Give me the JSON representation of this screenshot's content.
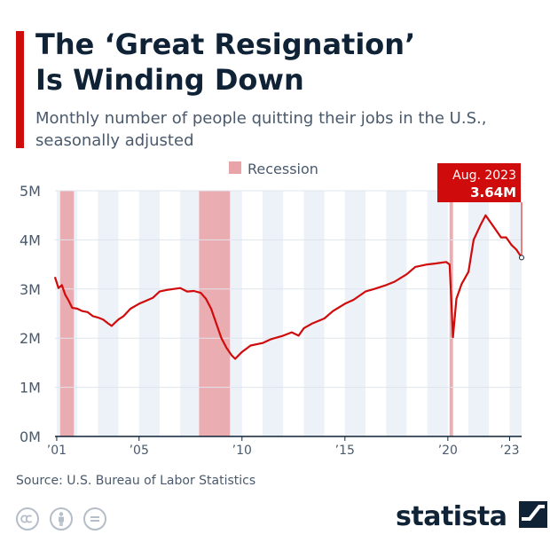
{
  "header": {
    "title_lines": [
      "The ‘Great Resignation’",
      "Is Winding Down"
    ],
    "subtitle_lines": [
      "Monthly number of people quitting their jobs in the U.S.,",
      "seasonally adjusted"
    ]
  },
  "footer": {
    "source": "Source: U.S. Bureau of Labor Statistics",
    "brand": "statista",
    "license_icons": [
      "cc-icon",
      "by-icon",
      "nd-icon"
    ]
  },
  "colors": {
    "accent": "#d00b0b",
    "line": "#d00b0b",
    "recession": "#e8a4a9",
    "stripe": "#edf2f8",
    "text": "#0f2236"
  },
  "chart_data": {
    "type": "line",
    "title": "The ‘Great Resignation’ Is Winding Down",
    "subtitle": "Monthly number of people quitting their jobs in the U.S., seasonally adjusted",
    "x_range": [
      "2000-12",
      "2023-08"
    ],
    "ylim": [
      0,
      5
    ],
    "y_unit": "M",
    "y_ticks": [
      0,
      1,
      2,
      3,
      4,
      5
    ],
    "y_tick_labels": [
      "0M",
      "1M",
      "2M",
      "3M",
      "4M",
      "5M"
    ],
    "x_ticks": [
      "2001",
      "2005",
      "2010",
      "2015",
      "2020",
      "2023"
    ],
    "x_tick_labels": [
      "’01",
      "’05",
      "’10",
      "’15",
      "’20",
      "’23"
    ],
    "grid": "alternating year stripes",
    "legend": {
      "label": "Recession",
      "placement": "top-center"
    },
    "recessions": [
      {
        "start": "2001-03",
        "end": "2001-11"
      },
      {
        "start": "2007-12",
        "end": "2009-06"
      },
      {
        "start": "2020-02",
        "end": "2020-04"
      }
    ],
    "annotation": {
      "date": "2023-08",
      "label": "Aug. 2023",
      "value_label": "3.64M",
      "value": 3.64
    },
    "series": [
      {
        "points": [
          [
            "2000-12",
            3.24
          ],
          [
            "2001-02",
            3.02
          ],
          [
            "2001-04",
            3.08
          ],
          [
            "2001-06",
            2.88
          ],
          [
            "2001-08",
            2.76
          ],
          [
            "2001-10",
            2.62
          ],
          [
            "2002-01",
            2.6
          ],
          [
            "2002-04",
            2.55
          ],
          [
            "2002-07",
            2.53
          ],
          [
            "2002-10",
            2.45
          ],
          [
            "2003-01",
            2.42
          ],
          [
            "2003-04",
            2.38
          ],
          [
            "2003-07",
            2.3
          ],
          [
            "2003-09",
            2.25
          ],
          [
            "2004-01",
            2.38
          ],
          [
            "2004-04",
            2.45
          ],
          [
            "2004-08",
            2.6
          ],
          [
            "2005-01",
            2.7
          ],
          [
            "2005-05",
            2.76
          ],
          [
            "2005-09",
            2.82
          ],
          [
            "2006-01",
            2.95
          ],
          [
            "2006-05",
            2.98
          ],
          [
            "2006-09",
            3.0
          ],
          [
            "2007-01",
            3.02
          ],
          [
            "2007-05",
            2.95
          ],
          [
            "2007-09",
            2.96
          ],
          [
            "2008-01",
            2.92
          ],
          [
            "2008-04",
            2.8
          ],
          [
            "2008-07",
            2.6
          ],
          [
            "2008-10",
            2.3
          ],
          [
            "2009-01",
            2.0
          ],
          [
            "2009-04",
            1.8
          ],
          [
            "2009-07",
            1.65
          ],
          [
            "2009-09",
            1.58
          ],
          [
            "2010-01",
            1.72
          ],
          [
            "2010-06",
            1.85
          ],
          [
            "2011-01",
            1.9
          ],
          [
            "2011-06",
            1.98
          ],
          [
            "2012-01",
            2.05
          ],
          [
            "2012-06",
            2.12
          ],
          [
            "2012-10",
            2.05
          ],
          [
            "2013-01",
            2.2
          ],
          [
            "2013-06",
            2.3
          ],
          [
            "2014-01",
            2.4
          ],
          [
            "2014-06",
            2.55
          ],
          [
            "2015-01",
            2.7
          ],
          [
            "2015-06",
            2.78
          ],
          [
            "2016-01",
            2.95
          ],
          [
            "2016-06",
            3.0
          ],
          [
            "2017-01",
            3.08
          ],
          [
            "2017-06",
            3.15
          ],
          [
            "2018-01",
            3.3
          ],
          [
            "2018-06",
            3.45
          ],
          [
            "2019-01",
            3.5
          ],
          [
            "2019-06",
            3.52
          ],
          [
            "2019-12",
            3.55
          ],
          [
            "2020-02",
            3.5
          ],
          [
            "2020-03",
            2.8
          ],
          [
            "2020-04",
            2.02
          ],
          [
            "2020-06",
            2.8
          ],
          [
            "2020-09",
            3.1
          ],
          [
            "2021-01",
            3.35
          ],
          [
            "2021-04",
            4.0
          ],
          [
            "2021-08",
            4.3
          ],
          [
            "2021-11",
            4.5
          ],
          [
            "2022-02",
            4.35
          ],
          [
            "2022-05",
            4.2
          ],
          [
            "2022-08",
            4.05
          ],
          [
            "2022-11",
            4.05
          ],
          [
            "2023-02",
            3.9
          ],
          [
            "2023-05",
            3.8
          ],
          [
            "2023-08",
            3.64
          ]
        ]
      }
    ]
  }
}
